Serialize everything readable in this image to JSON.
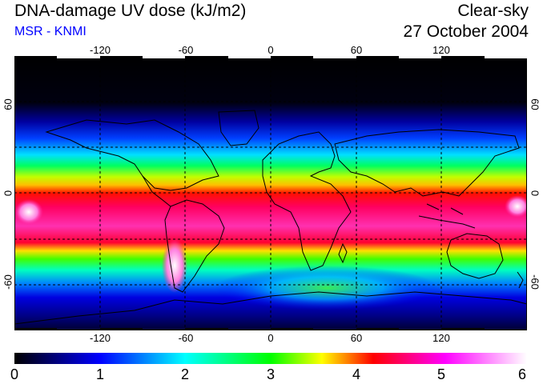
{
  "header": {
    "title": "DNA-damage UV dose (kJ/m2)",
    "credit": "MSR - KNMI",
    "mode": "Clear-sky",
    "date": "27 October 2004"
  },
  "map": {
    "lon_labels": [
      "-120",
      "-60",
      "0",
      "60",
      "120"
    ],
    "lat_labels": [
      "60",
      "0",
      "-60"
    ],
    "grid_lon": [
      -120,
      -60,
      0,
      60,
      120
    ],
    "grid_lat": [
      60,
      30,
      0,
      -30,
      -60
    ],
    "lon_range": [
      -180,
      180
    ],
    "lat_range": [
      90,
      -90
    ]
  },
  "colorbar": {
    "tick_labels": [
      "0",
      "1",
      "2",
      "3",
      "4",
      "5",
      "6"
    ],
    "range": [
      0,
      6
    ],
    "colors": [
      "#000000",
      "#0000ff",
      "#00ffff",
      "#00ff00",
      "#ffff00",
      "#ff0000",
      "#ff00ff",
      "#ffffff"
    ]
  },
  "colors": {
    "polar": "#000000",
    "high_lat": "#0000d0",
    "mid_lat": "#00ff80",
    "subtropic": "#ffe000",
    "tropic": "#ff0050",
    "equator": "#ff20a0"
  }
}
